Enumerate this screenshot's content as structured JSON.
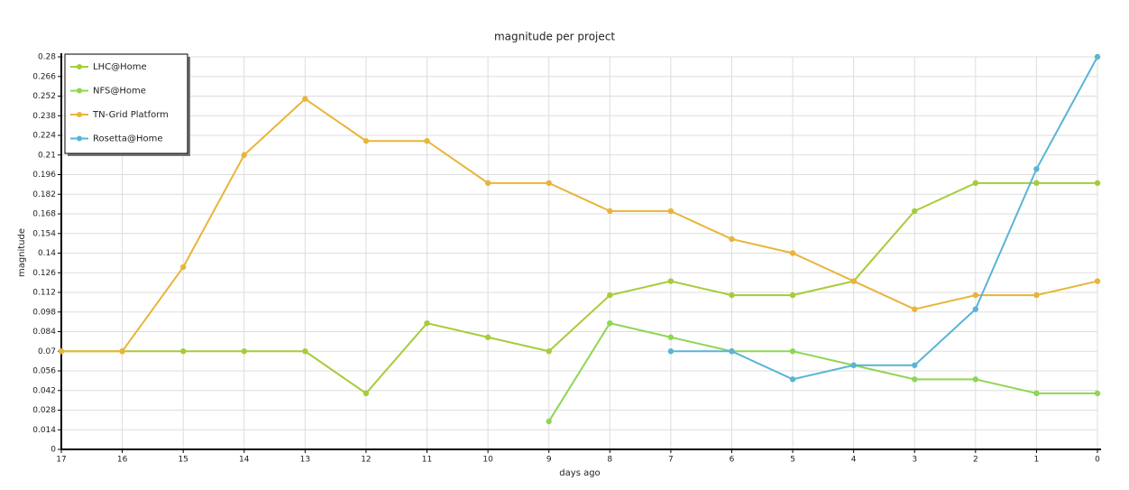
{
  "chart_data": {
    "type": "line",
    "title": "magnitude per project",
    "xlabel": "days ago",
    "ylabel": "magnitude",
    "x": [
      17,
      16,
      15,
      14,
      13,
      12,
      11,
      10,
      9,
      8,
      7,
      6,
      5,
      4,
      3,
      2,
      1,
      0
    ],
    "xlim": [
      17,
      0
    ],
    "xticks": [
      17,
      16,
      15,
      14,
      13,
      12,
      11,
      10,
      9,
      8,
      7,
      6,
      5,
      4,
      3,
      2,
      1,
      0
    ],
    "ylim": [
      0,
      0.28
    ],
    "yticks": [
      0,
      0.014,
      0.028,
      0.042,
      0.056,
      0.07,
      0.084,
      0.098,
      0.112,
      0.126,
      0.14,
      0.154,
      0.168,
      0.182,
      0.196,
      0.21,
      0.224,
      0.238,
      0.252,
      0.266,
      0.28
    ],
    "grid": true,
    "legend": "upper left",
    "series": [
      {
        "name": "LHC@Home",
        "color": "#a6cc38",
        "values": [
          0.07,
          0.07,
          0.07,
          0.07,
          0.07,
          0.04,
          0.09,
          0.08,
          0.07,
          0.11,
          0.12,
          0.11,
          0.11,
          0.12,
          0.17,
          0.19,
          0.19,
          0.19
        ]
      },
      {
        "name": "NFS@Home",
        "color": "#8fd653",
        "values": [
          null,
          null,
          null,
          null,
          null,
          null,
          null,
          null,
          0.02,
          0.09,
          0.08,
          0.07,
          0.07,
          0.06,
          0.05,
          0.05,
          0.04,
          0.04
        ]
      },
      {
        "name": "TN-Grid Platform",
        "color": "#e8b53a",
        "values": [
          0.07,
          0.07,
          0.13,
          0.21,
          0.25,
          0.22,
          0.22,
          0.19,
          0.19,
          0.17,
          0.17,
          0.15,
          0.14,
          0.12,
          0.1,
          0.11,
          0.11,
          0.12
        ]
      },
      {
        "name": "Rosetta@Home",
        "color": "#5ab4d6",
        "values": [
          null,
          null,
          null,
          null,
          null,
          null,
          null,
          null,
          null,
          null,
          0.07,
          0.07,
          0.05,
          0.06,
          0.06,
          0.1,
          0.2,
          0.28
        ]
      }
    ]
  }
}
